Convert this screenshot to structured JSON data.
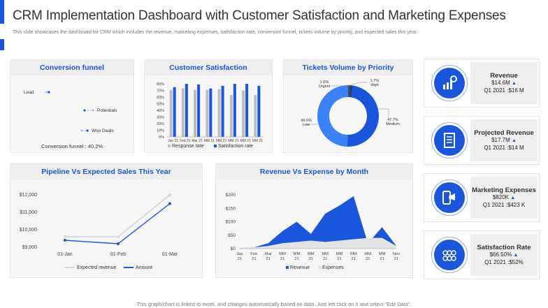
{
  "header": {
    "title": "CRM Implementation Dashboard with Customer Satisfaction and Marketing Expenses",
    "subtitle": "This slide showcases the dashboard for CRM which includes the revenue, marketing expenses, satisfaction rate, conversion funnel, tickets volume by priority, and expected sales this year."
  },
  "colors": {
    "accent": "#1a56db",
    "light": "#d9d9d9",
    "grey": "#bdbdbd"
  },
  "funnel": {
    "title": "Conversion funnel",
    "labels": [
      "Lead",
      "Potentials",
      "Won Deals"
    ],
    "caption": "Conversion funnel : 40.2%"
  },
  "satisfaction": {
    "title": "Customer Satisfaction",
    "legend": [
      "Response rate",
      "Satisfaction rate"
    ]
  },
  "tickets": {
    "title": "Tickets Volume by Priority",
    "labels": [
      {
        "pct": "1.0%",
        "name": "Urgent"
      },
      {
        "pct": "1.7%",
        "name": "High"
      },
      {
        "pct": "49.6%",
        "name": "Low"
      },
      {
        "pct": "47.7%",
        "name": "Medium"
      }
    ]
  },
  "pipeline": {
    "title": "Pipeline Vs Expected Sales This Year",
    "legend": [
      "Expected revenue",
      "Amount"
    ]
  },
  "revexp": {
    "title": "Revenue Vs Expense by Month",
    "legend": [
      "Revenue",
      "Expenses"
    ]
  },
  "kpis": [
    {
      "title": "Revenue",
      "value": "$14.6M",
      "prev": "Q1 2021 :$16 M",
      "icon": "gear-chart-icon"
    },
    {
      "title": "Projected Revenue",
      "value": "$17.7M",
      "prev": "Q1 2021 :$14 M",
      "icon": "document-icon"
    },
    {
      "title": "Marketing Expenses",
      "value": "$820K",
      "prev": "Q1 2021 :$423 K",
      "icon": "phone-megaphone-icon"
    },
    {
      "title": "Satisfaction Rate",
      "value": "$66.50%",
      "prev": "Q1 2021 :$52%",
      "icon": "rating-icon"
    }
  ],
  "footer": "This graph/chart is linked to excel, and changes automatically based on data. Just left click on it and select “Edit Data”.",
  "chart_data": [
    {
      "type": "scatter",
      "title": "Conversion funnel",
      "categories": [
        "Lead",
        "Potentials",
        "Won Deals"
      ],
      "caption": "Conversion funnel : 40.2%"
    },
    {
      "type": "bar",
      "title": "Customer Satisfaction",
      "categories": [
        "Jan 21",
        "Feb 21",
        "Mar 21",
        "MM 21",
        "MM 21",
        "MM 21",
        "MM 21",
        "MM 21"
      ],
      "ylim": [
        0,
        80
      ],
      "yticks": [
        "0%",
        "10%",
        "20%",
        "30%",
        "40%",
        "50%",
        "60%",
        "70%",
        "80%"
      ],
      "series": [
        {
          "name": "Response rate",
          "values": [
            71,
            73,
            71,
            71,
            72,
            63,
            70,
            63
          ]
        },
        {
          "name": "Satisfaction rate",
          "values": [
            75,
            80,
            79,
            73,
            77,
            80,
            80,
            77
          ]
        }
      ]
    },
    {
      "type": "pie",
      "title": "Tickets Volume by Priority",
      "slices": [
        {
          "name": "Urgent",
          "value": 1.0
        },
        {
          "name": "High",
          "value": 1.7
        },
        {
          "name": "Medium",
          "value": 47.7
        },
        {
          "name": "Low",
          "value": 49.6
        }
      ]
    },
    {
      "type": "line",
      "title": "Pipeline Vs Expected Sales This Year",
      "categories": [
        "01-Jan",
        "01-Feb",
        "01-Mar"
      ],
      "ylim": [
        9000,
        12000
      ],
      "yticks": [
        "$9,000",
        "$10,000",
        "$11,000",
        "$12,000"
      ],
      "series": [
        {
          "name": "Expected revenue",
          "values": [
            9600,
            9600,
            12000
          ]
        },
        {
          "name": "Amount",
          "values": [
            9400,
            9200,
            11500
          ]
        }
      ]
    },
    {
      "type": "area",
      "title": "Revenue Vs Expense by Month",
      "categories": [
        "Jan 21",
        "Feb 21",
        "Mar 21",
        "MM 21",
        "MM 21",
        "MM 21",
        "MM 21",
        "MM 21",
        "MM 21",
        "MM 21",
        "MM 21",
        "Nov 21"
      ],
      "ylim": [
        0,
        200
      ],
      "yticks": [
        "$0",
        "$50",
        "$100",
        "$150",
        "$200"
      ],
      "series": [
        {
          "name": "Revenue",
          "values": [
            2,
            5,
            20,
            65,
            100,
            55,
            130,
            160,
            195,
            20,
            80,
            10
          ]
        },
        {
          "name": "Expenses",
          "values": [
            2,
            5,
            10,
            20,
            25,
            30,
            25,
            30,
            35,
            40,
            40,
            10
          ]
        }
      ]
    }
  ]
}
